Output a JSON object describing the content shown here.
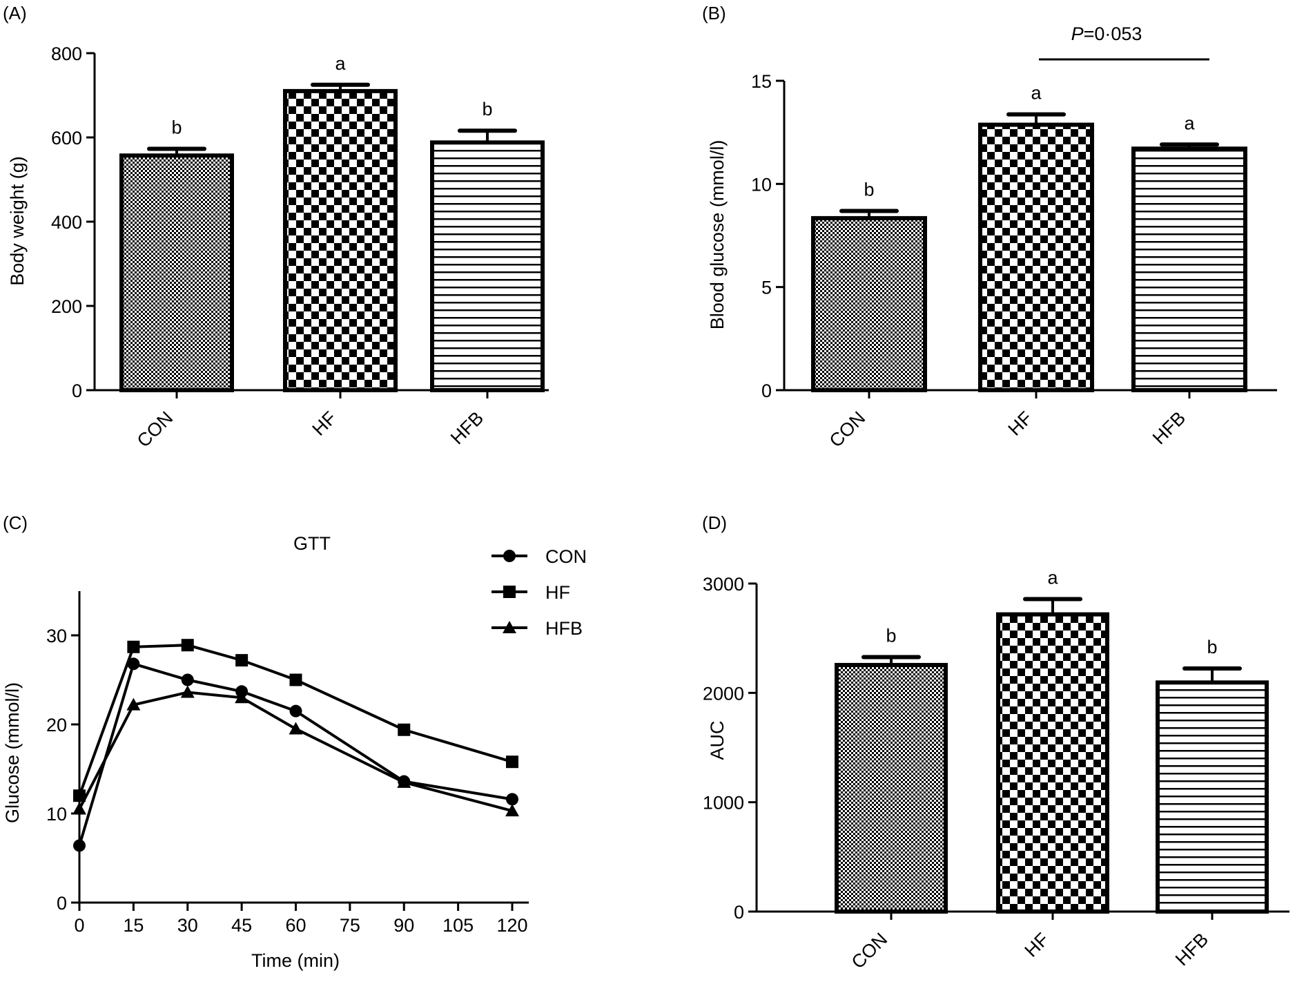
{
  "chart_data": [
    {
      "panel": "(A)",
      "type": "bar",
      "title": "",
      "xlabel": "",
      "ylabel": "Body weight (g)",
      "ylim": [
        0,
        800
      ],
      "yticks": [
        "0",
        "200",
        "400",
        "600",
        "800"
      ],
      "categories": [
        "CON",
        "HF",
        "HFB"
      ],
      "values": [
        557,
        710,
        588
      ],
      "errors": [
        16,
        15,
        28
      ],
      "annotations": [
        "b",
        "a",
        "b"
      ],
      "patterns": [
        "fine-dots",
        "checker",
        "horizontal-lines"
      ]
    },
    {
      "panel": "(B)",
      "type": "bar",
      "title": "",
      "xlabel": "",
      "ylabel": "Blood glucose (mmol/l)",
      "ylim": [
        0,
        15
      ],
      "yticks": [
        "0",
        "5",
        "10",
        "15"
      ],
      "categories": [
        "CON",
        "HF",
        "HFB"
      ],
      "values": [
        8.34,
        12.87,
        11.71
      ],
      "errors": [
        0.35,
        0.5,
        0.2
      ],
      "annotations": [
        "b",
        "a",
        "a"
      ],
      "patterns": [
        "fine-dots",
        "checker",
        "horizontal-lines"
      ],
      "comparison": {
        "from": "HF",
        "to": "HFB",
        "label_p": "P",
        "label_rest": "=0·053"
      }
    },
    {
      "panel": "(C)",
      "type": "line",
      "title": "GTT",
      "xlabel": "Time (min)",
      "ylabel": "Glucose (mmol/l)",
      "xlim": [
        0,
        120
      ],
      "ylim": [
        0,
        35
      ],
      "xticks": [
        "0",
        "15",
        "30",
        "45",
        "60",
        "75",
        "90",
        "105",
        "120"
      ],
      "yticks": [
        "0",
        "10",
        "20",
        "30"
      ],
      "x": [
        0,
        15,
        30,
        45,
        60,
        90,
        120
      ],
      "legend_position": "top-right",
      "series": [
        {
          "name": "CON",
          "marker": "circle",
          "values": [
            6.4,
            26.8,
            25.0,
            23.7,
            21.5,
            13.6,
            11.6
          ]
        },
        {
          "name": "HF",
          "marker": "square",
          "values": [
            12.0,
            28.7,
            28.9,
            27.2,
            25.0,
            19.4,
            15.8
          ]
        },
        {
          "name": "HFB",
          "marker": "triangle",
          "values": [
            10.5,
            22.2,
            23.6,
            23.0,
            19.5,
            13.5,
            10.3
          ]
        }
      ]
    },
    {
      "panel": "(D)",
      "type": "bar",
      "title": "",
      "xlabel": "",
      "ylabel": "AUC",
      "ylim": [
        0,
        3000
      ],
      "yticks": [
        "0",
        "1000",
        "2000",
        "3000"
      ],
      "categories": [
        "CON",
        "HF",
        "HFB"
      ],
      "values": [
        2255,
        2718,
        2095
      ],
      "errors": [
        72,
        140,
        128
      ],
      "annotations": [
        "b",
        "a",
        "b"
      ],
      "patterns": [
        "fine-dots",
        "checker",
        "horizontal-lines"
      ]
    }
  ]
}
